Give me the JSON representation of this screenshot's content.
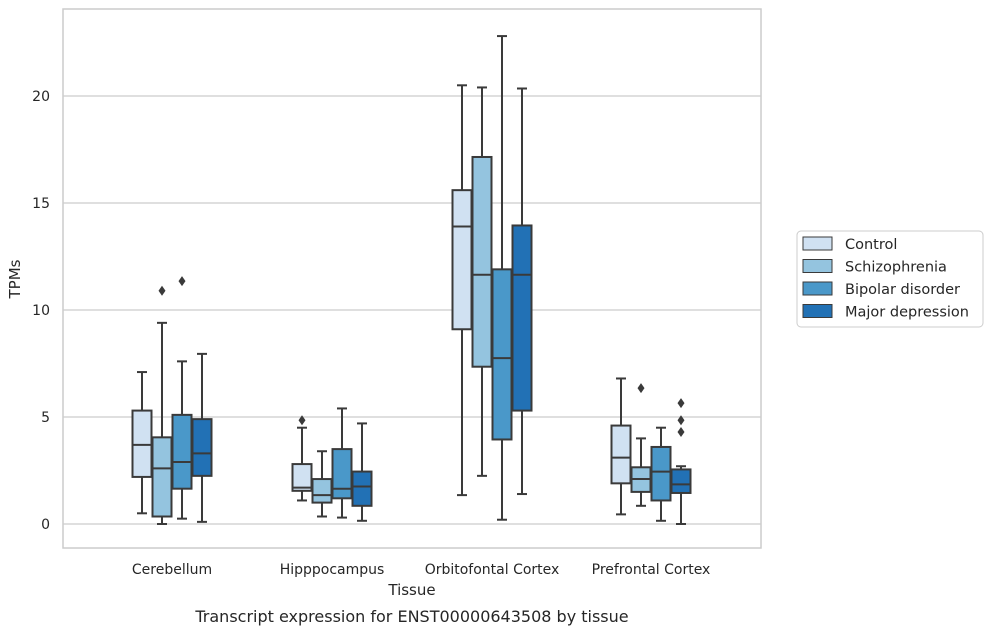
{
  "chart_data": {
    "type": "box",
    "title": "",
    "caption": "Transcript expression for ENST00000643508 by tissue",
    "xlabel": "Tissue",
    "ylabel": "TPMs",
    "ylim": [
      -1.1,
      24
    ],
    "yticks": [
      0,
      5,
      10,
      15,
      20
    ],
    "grid": "horizontal",
    "legend_position": "right",
    "categories": [
      "Cerebellum",
      "Hipppocampus",
      "Orbitofontal Cortex",
      "Prefrontal Cortex"
    ],
    "series": [
      {
        "name": "Control",
        "color": "#d0e1f2",
        "boxes": [
          {
            "whisker_low": 0.5,
            "q1": 2.2,
            "median": 3.7,
            "q3": 5.3,
            "whisker_high": 7.1,
            "outliers": []
          },
          {
            "whisker_low": 1.1,
            "q1": 1.55,
            "median": 1.7,
            "q3": 2.8,
            "whisker_high": 4.5,
            "outliers": [
              4.85
            ]
          },
          {
            "whisker_low": 1.35,
            "q1": 9.1,
            "median": 13.9,
            "q3": 15.6,
            "whisker_high": 20.5,
            "outliers": []
          },
          {
            "whisker_low": 0.45,
            "q1": 1.9,
            "median": 3.1,
            "q3": 4.6,
            "whisker_high": 6.8,
            "outliers": []
          }
        ]
      },
      {
        "name": "Schizophrenia",
        "color": "#94c4df",
        "boxes": [
          {
            "whisker_low": 0.0,
            "q1": 0.35,
            "median": 2.6,
            "q3": 4.05,
            "whisker_high": 9.4,
            "outliers": [
              10.9
            ]
          },
          {
            "whisker_low": 0.35,
            "q1": 1.0,
            "median": 1.35,
            "q3": 2.1,
            "whisker_high": 3.4,
            "outliers": []
          },
          {
            "whisker_low": 2.25,
            "q1": 7.35,
            "median": 11.65,
            "q3": 17.15,
            "whisker_high": 20.4,
            "outliers": []
          },
          {
            "whisker_low": 0.85,
            "q1": 1.5,
            "median": 2.1,
            "q3": 2.65,
            "whisker_high": 4.0,
            "outliers": [
              6.35
            ]
          }
        ]
      },
      {
        "name": "Bipolar disorder",
        "color": "#4a98c9",
        "boxes": [
          {
            "whisker_low": 0.25,
            "q1": 1.65,
            "median": 2.9,
            "q3": 5.1,
            "whisker_high": 7.6,
            "outliers": [
              11.35
            ]
          },
          {
            "whisker_low": 0.3,
            "q1": 1.2,
            "median": 1.65,
            "q3": 3.5,
            "whisker_high": 5.4,
            "outliers": []
          },
          {
            "whisker_low": 0.2,
            "q1": 3.95,
            "median": 7.75,
            "q3": 11.9,
            "whisker_high": 22.8,
            "outliers": []
          },
          {
            "whisker_low": 0.15,
            "q1": 1.1,
            "median": 2.45,
            "q3": 3.6,
            "whisker_high": 4.5,
            "outliers": []
          }
        ]
      },
      {
        "name": "Major depression",
        "color": "#2271b5",
        "boxes": [
          {
            "whisker_low": 0.1,
            "q1": 2.25,
            "median": 3.3,
            "q3": 4.9,
            "whisker_high": 7.95,
            "outliers": []
          },
          {
            "whisker_low": 0.15,
            "q1": 0.85,
            "median": 1.75,
            "q3": 2.45,
            "whisker_high": 4.7,
            "outliers": []
          },
          {
            "whisker_low": 1.4,
            "q1": 5.3,
            "median": 11.65,
            "q3": 13.95,
            "whisker_high": 20.35,
            "outliers": []
          },
          {
            "whisker_low": 0.0,
            "q1": 1.45,
            "median": 1.85,
            "q3": 2.55,
            "whisker_high": 2.7,
            "outliers": [
              4.3,
              4.85,
              5.65
            ]
          }
        ]
      }
    ]
  }
}
